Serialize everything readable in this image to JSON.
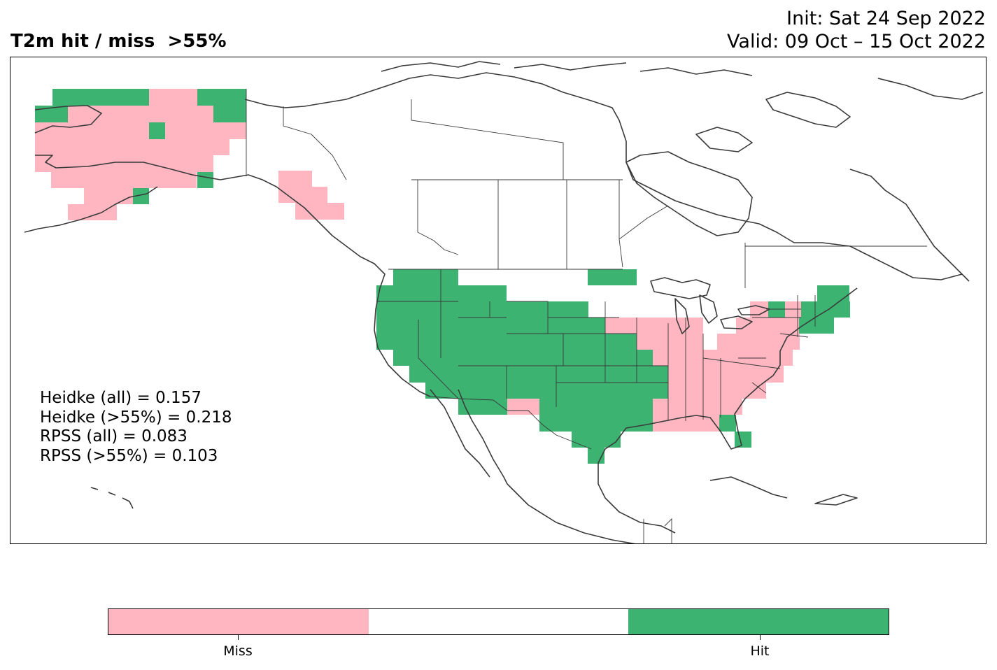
{
  "title": {
    "left": "T2m hit / miss  >55%",
    "init": "Init: Sat 24 Sep 2022",
    "valid": "Valid: 09 Oct – 15 Oct 2022"
  },
  "scores": {
    "heidke_all": "Heidke (all) = 0.157",
    "heidke_55": "Heidke (>55%) = 0.218",
    "rpss_all": "RPSS (all) = 0.083",
    "rpss_55": "RPSS (>55%) = 0.103"
  },
  "colorbar": {
    "segments": [
      {
        "label": "Miss",
        "color": "#ffb6c1"
      },
      {
        "label": "",
        "color": "#ffffff"
      },
      {
        "label": "Hit",
        "color": "#3cb371"
      }
    ],
    "tick_labels": [
      "Miss",
      "Hit"
    ]
  },
  "legend_colors": {
    "miss": "#ffb6c1",
    "hit": "#3cb371",
    "outline": "#3a3a3a"
  }
}
